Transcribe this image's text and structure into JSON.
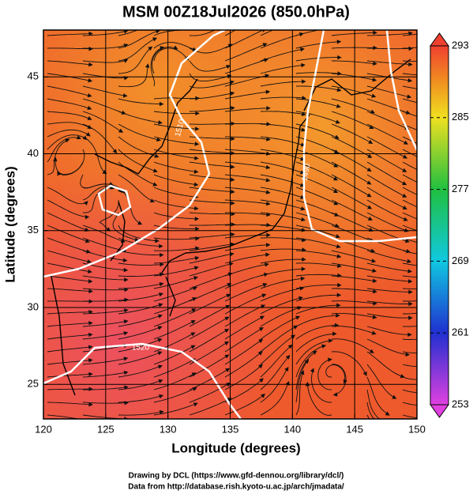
{
  "title": "MSM 00Z18Jul2026 (850.0hPa)",
  "map": {
    "xlabel": "Longitude (degrees)",
    "ylabel": "Latitude  (degrees)",
    "xlim": [
      120,
      150
    ],
    "ylim": [
      22.75,
      48.05
    ],
    "xticks": [
      120,
      125,
      130,
      135,
      140,
      145,
      150
    ],
    "yticks": [
      25,
      30,
      35,
      40,
      45
    ],
    "grid": true,
    "contour_labels": [
      "1510",
      "1490",
      "1520"
    ]
  },
  "colorbar": {
    "lim": [
      253,
      293
    ],
    "ticks": [
      253,
      261,
      269,
      277,
      285,
      293
    ],
    "colors": [
      {
        "value": 253,
        "color": "#e040e0"
      },
      {
        "value": 261,
        "color": "#2030d0"
      },
      {
        "value": 269,
        "color": "#10c8e0"
      },
      {
        "value": 277,
        "color": "#20c040"
      },
      {
        "value": 285,
        "color": "#f0e020"
      },
      {
        "value": 289,
        "color": "#f09020"
      },
      {
        "value": 293,
        "color": "#f04030"
      }
    ]
  },
  "credits": [
    "Drawing by DCL (https://www.gfd-dennou.org/library/dcl/)",
    "Data from http://database.rish.kyoto-u.ac.jp/arch/jmadata/"
  ]
}
